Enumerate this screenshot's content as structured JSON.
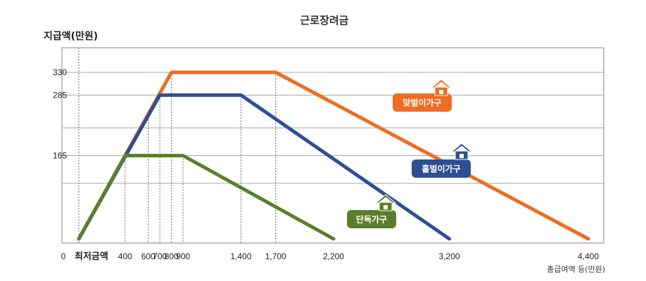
{
  "chart_data": {
    "type": "line",
    "title": "근로장려금",
    "ylabel": "지급액(만원)",
    "xlabel": "총급여액 등(만원)",
    "x_min_label": "최저금액",
    "y_zero_label": "0",
    "xlim": [
      0,
      4400
    ],
    "ylim": [
      0,
      330
    ],
    "yticks": [
      {
        "value": 165,
        "label": "165"
      },
      {
        "value": 285,
        "label": "285"
      },
      {
        "value": 330,
        "label": "330"
      }
    ],
    "xticks": [
      {
        "value": 400,
        "label": "400"
      },
      {
        "value": 600,
        "label": "600"
      },
      {
        "value": 700,
        "label": "700"
      },
      {
        "value": 800,
        "label": "800"
      },
      {
        "value": 900,
        "label": "900"
      },
      {
        "value": 1400,
        "label": "1,400"
      },
      {
        "value": 1700,
        "label": "1,700"
      },
      {
        "value": 2200,
        "label": "2,200"
      },
      {
        "value": 3200,
        "label": "3,200"
      },
      {
        "value": 4400,
        "label": "4,400"
      }
    ],
    "grid_y": [
      110,
      165,
      220,
      285,
      330
    ],
    "series": [
      {
        "name": "맞벌이가구",
        "color": "#ef6c22",
        "x": [
          0,
          800,
          1700,
          4400
        ],
        "y": [
          0,
          330,
          330,
          0
        ]
      },
      {
        "name": "홑벌이가구",
        "color": "#2f4f93",
        "x": [
          0,
          700,
          1400,
          3200
        ],
        "y": [
          0,
          285,
          285,
          0
        ]
      },
      {
        "name": "단독가구",
        "color": "#5a7f2c",
        "x": [
          0,
          400,
          900,
          2200
        ],
        "y": [
          0,
          165,
          165,
          0
        ]
      }
    ],
    "grid": true,
    "legend": "inline labels with house icons"
  }
}
